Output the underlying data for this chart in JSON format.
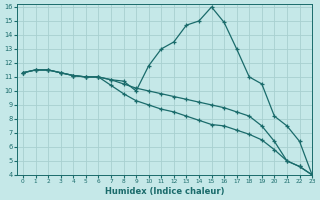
{
  "xlabel": "Humidex (Indice chaleur)",
  "bg_color": "#c5e8e8",
  "grid_color": "#a8d0d0",
  "line_color": "#1a6b6b",
  "xlim": [
    -0.5,
    23
  ],
  "ylim": [
    4,
    16.2
  ],
  "xticks": [
    0,
    1,
    2,
    3,
    4,
    5,
    6,
    7,
    8,
    9,
    10,
    11,
    12,
    13,
    14,
    15,
    16,
    17,
    18,
    19,
    20,
    21,
    22,
    23
  ],
  "yticks": [
    4,
    5,
    6,
    7,
    8,
    9,
    10,
    11,
    12,
    13,
    14,
    15,
    16
  ],
  "line1_x": [
    0,
    1,
    2,
    3,
    4,
    5,
    6,
    7,
    8,
    9,
    10,
    11,
    12,
    13,
    14,
    15,
    16,
    17,
    18,
    19,
    20,
    21,
    22,
    23
  ],
  "line1_y": [
    11.3,
    11.5,
    11.5,
    11.3,
    11.1,
    11.0,
    11.0,
    10.8,
    10.7,
    10.0,
    11.8,
    13.0,
    13.5,
    14.7,
    15.0,
    16.0,
    14.9,
    13.0,
    11.0,
    10.5,
    8.2,
    7.5,
    6.4,
    4.0
  ],
  "line2_x": [
    0,
    1,
    2,
    3,
    4,
    5,
    6,
    7,
    8,
    9,
    10,
    11,
    12,
    13,
    14,
    15,
    16,
    17,
    18,
    19,
    20,
    21,
    22,
    23
  ],
  "line2_y": [
    11.3,
    11.5,
    11.5,
    11.3,
    11.1,
    11.0,
    11.0,
    10.8,
    10.5,
    10.2,
    10.0,
    9.8,
    9.6,
    9.4,
    9.2,
    9.0,
    8.8,
    8.5,
    8.2,
    7.5,
    6.4,
    5.0,
    4.6,
    4.0
  ],
  "line3_x": [
    0,
    1,
    2,
    3,
    4,
    5,
    6,
    7,
    8,
    9,
    10,
    11,
    12,
    13,
    14,
    15,
    16,
    17,
    18,
    19,
    20,
    21,
    22,
    23
  ],
  "line3_y": [
    11.3,
    11.5,
    11.5,
    11.3,
    11.1,
    11.0,
    11.0,
    10.4,
    9.8,
    9.3,
    9.0,
    8.7,
    8.5,
    8.2,
    7.9,
    7.6,
    7.5,
    7.2,
    6.9,
    6.5,
    5.8,
    5.0,
    4.6,
    4.0
  ]
}
